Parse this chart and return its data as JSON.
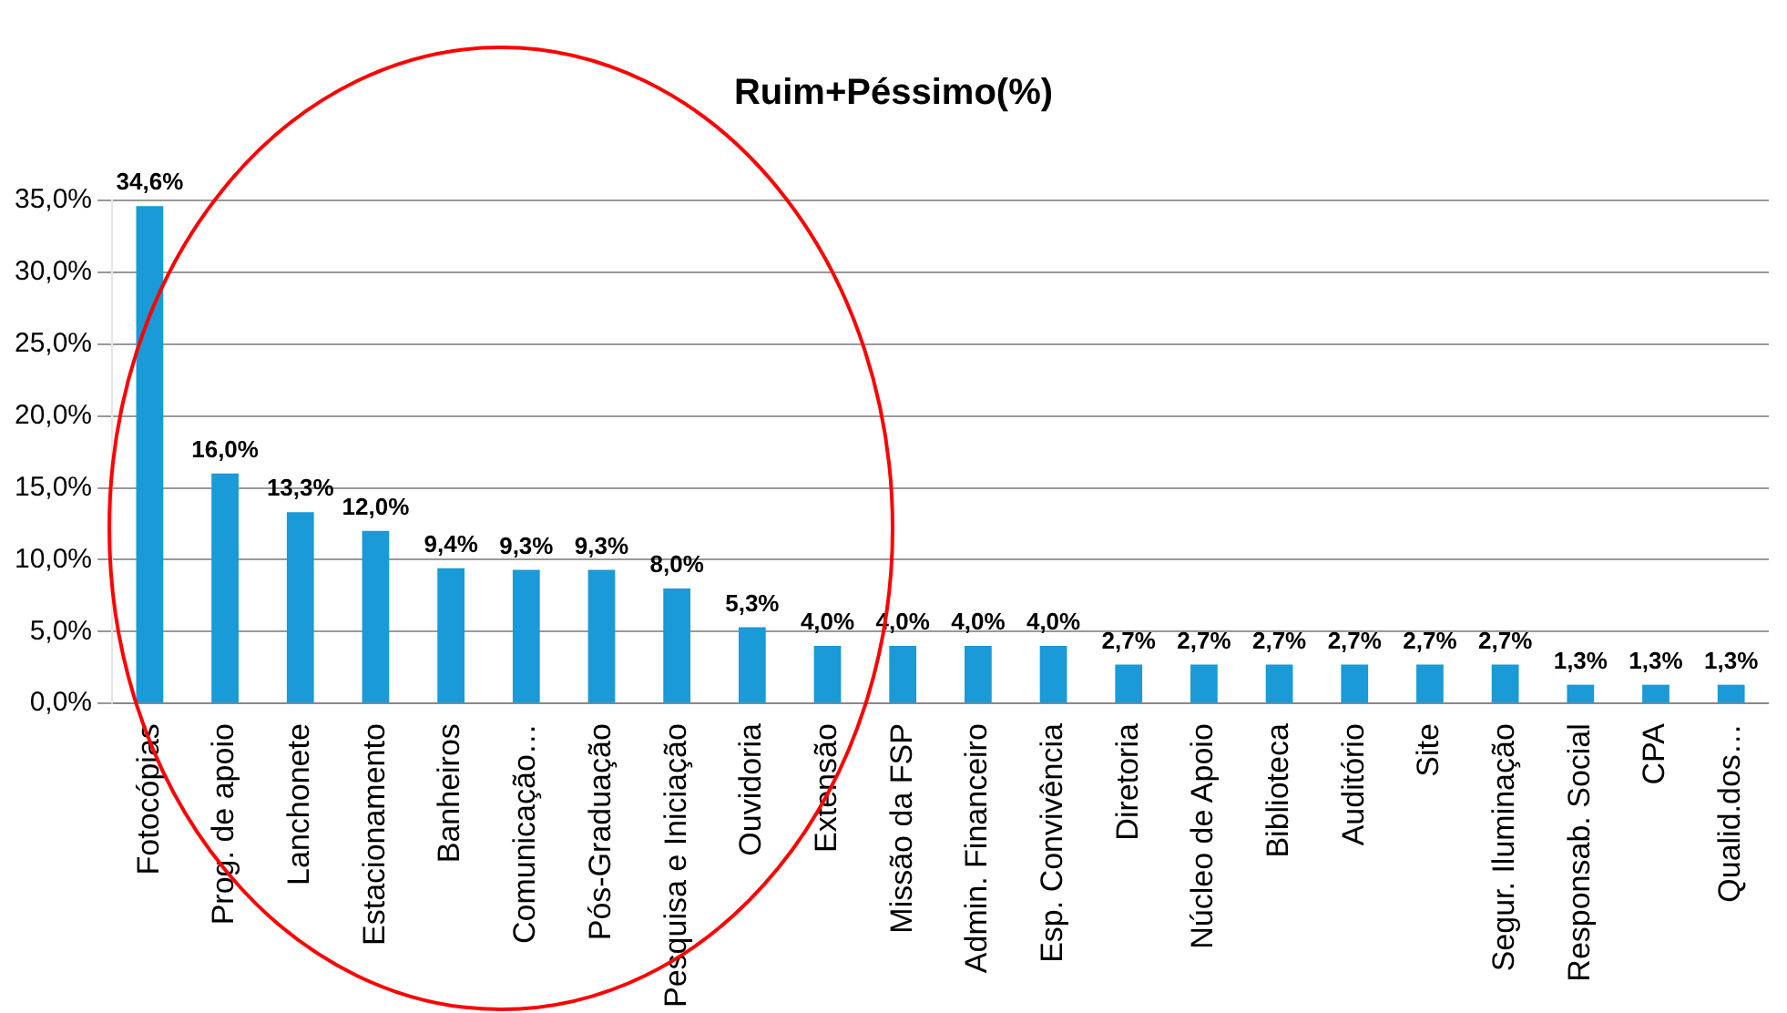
{
  "chart_data": {
    "type": "bar",
    "title": "Ruim+Péssimo(%)",
    "categories": [
      "Fotocópias",
      "Prog. de apoio",
      "Lanchonete",
      "Estacionamento",
      "Banheiros",
      "Comunicação…",
      "Pós-Graduação",
      "Pesquisa e Iniciação",
      "Ouvidoria",
      "Extensão",
      "Missão da FSP",
      "Admin. Financeiro",
      "Esp. Convivência",
      "Diretoria",
      "Núcleo de Apoio",
      "Biblioteca",
      "Auditório",
      "Site",
      "Segur. Iluminação",
      "Responsab. Social",
      "CPA",
      "Qualid.dos…"
    ],
    "values": [
      34.6,
      16.0,
      13.3,
      12.0,
      9.4,
      9.3,
      9.3,
      8.0,
      5.3,
      4.0,
      4.0,
      4.0,
      4.0,
      2.7,
      2.7,
      2.7,
      2.7,
      2.7,
      2.7,
      1.3,
      1.3,
      1.3
    ],
    "value_labels": [
      "34,6%",
      "16,0%",
      "13,3%",
      "12,0%",
      "9,4%",
      "9,3%",
      "9,3%",
      "8,0%",
      "5,3%",
      "4,0%",
      "4,0%",
      "4,0%",
      "4,0%",
      "2,7%",
      "2,7%",
      "2,7%",
      "2,7%",
      "2,7%",
      "2,7%",
      "1,3%",
      "1,3%",
      "1,3%"
    ],
    "color": "#1a9ad6",
    "ylim": [
      0,
      35
    ],
    "yticks": [
      {
        "value": 0,
        "label": "0,0%"
      },
      {
        "value": 5,
        "label": "5,0%"
      },
      {
        "value": 10,
        "label": "10,0%"
      },
      {
        "value": 15,
        "label": "15,0%"
      },
      {
        "value": 20,
        "label": "20,0%"
      },
      {
        "value": 25,
        "label": "25,0%"
      },
      {
        "value": 30,
        "label": "30,0%"
      },
      {
        "value": 35,
        "label": "35,0%"
      }
    ],
    "grid": "y",
    "legend": false
  }
}
